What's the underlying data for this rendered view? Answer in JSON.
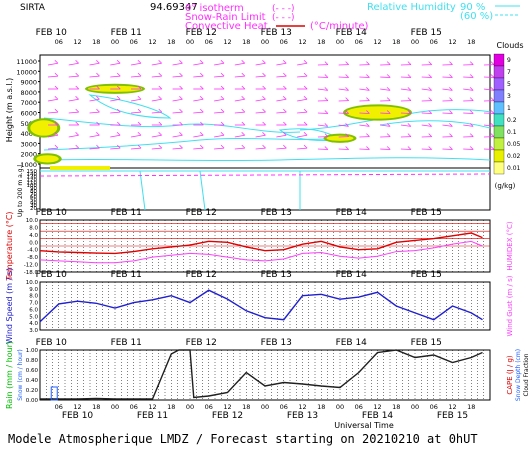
{
  "header": {
    "station": "SIRTA",
    "coord": "94.69347",
    "legend_isotherm": "0° isotherm",
    "legend_snow_rain": "Snow-Rain Limit",
    "legend_convective": "Convective Heat.",
    "legend_unit_minute": "(°C/minute)",
    "legend_relhum": "Relative Humidity",
    "relhum_90": "90 %",
    "relhum_60": "(60 %)",
    "dash_symbol": "(- - -)"
  },
  "days": [
    "FEB 10",
    "FEB 11",
    "FEB 12",
    "FEB 13",
    "FEB 14",
    "FEB 15"
  ],
  "hours": [
    "06",
    "12",
    "18",
    "00",
    "06",
    "12",
    "18",
    "00",
    "06",
    "12",
    "18",
    "00",
    "06",
    "12",
    "18",
    "00",
    "06",
    "12",
    "18",
    "00",
    "06",
    "12",
    "18"
  ],
  "colors": {
    "humidity": "#40e0f0",
    "cloud_yellow": "#f0f000",
    "cloud_green": "#80c000",
    "wind_barb": "#ff30ff",
    "temperature": "#e00000",
    "humidex": "#ff40ff",
    "wind_speed": "#2020d0",
    "cloud_fraction": "#202020",
    "rain": "#00c000",
    "snow": "#2060ff"
  },
  "chart_data": [
    {
      "type": "heatmap",
      "name": "altitude_cross_section",
      "ylabel": "Height (m a.s.l.)",
      "ylabel2": "Up to 200 m a.g.l.",
      "y_ticks_upper": [
        "11000",
        "10000",
        "9000",
        "8000",
        "7000",
        "6000",
        "5000",
        "4000",
        "3000",
        "2000",
        "1000"
      ],
      "y_ticks_lower": [
        "150",
        "140",
        "130",
        "120",
        "110",
        "100",
        "90",
        "80",
        "70",
        "60",
        "50",
        "40",
        "30",
        "20"
      ],
      "colorbar_title": "Clouds",
      "colorbar_unit": "(g/kg)",
      "colorbar_ticks": [
        "9",
        "7",
        "5",
        "3",
        "1",
        "0.2",
        "0.1",
        "0.05",
        "0.02",
        "0.01"
      ],
      "colorbar_colors": [
        "#e000e0",
        "#c040f0",
        "#a060ff",
        "#8080ff",
        "#60c0ff",
        "#40e0c0",
        "#80e060",
        "#c0f040",
        "#e8f000",
        "#ffff80"
      ],
      "cloud_patches": [
        {
          "day_pos": 0.05,
          "alt": 4500,
          "w": 0.06,
          "h": 1500
        },
        {
          "day_pos": 0.1,
          "alt": 1500,
          "w": 0.05,
          "h": 700
        },
        {
          "day_pos": 1.0,
          "alt": 8300,
          "w": 0.12,
          "h": 600
        },
        {
          "day_pos": 4.0,
          "alt": 3500,
          "w": 0.06,
          "h": 500
        },
        {
          "day_pos": 4.5,
          "alt": 6000,
          "w": 0.14,
          "h": 1200
        }
      ]
    },
    {
      "type": "line",
      "name": "temperature",
      "ylabel": "Temperature (°C)",
      "ylabel2": "HUMIDEX (°C)",
      "y_ticks": [
        "10.0",
        "8.0",
        "4.0",
        "0.0",
        "-4.0",
        "-8.0",
        "-12.0",
        "-18.0"
      ],
      "ylim": [
        -18,
        10
      ],
      "series": [
        {
          "name": "Temperature",
          "x": [
            0.0,
            0.25,
            0.5,
            0.75,
            1.0,
            1.25,
            1.5,
            1.75,
            2.0,
            2.25,
            2.5,
            2.75,
            3.0,
            3.25,
            3.5,
            3.75,
            4.0,
            4.25,
            4.5,
            4.75,
            5.0,
            5.25,
            5.5,
            5.75,
            5.9
          ],
          "values": [
            -6.5,
            -7.2,
            -7.5,
            -7.8,
            -8.0,
            -7.0,
            -5.5,
            -4.5,
            -3.5,
            -1.5,
            -2.0,
            -4.5,
            -6.5,
            -6.0,
            -3.0,
            -1.5,
            -4.5,
            -6.0,
            -5.5,
            -2.0,
            -1.0,
            0.0,
            1.5,
            3.0,
            0.5
          ]
        },
        {
          "name": "HUMIDEX",
          "x": [
            0.0,
            0.25,
            0.5,
            0.75,
            1.0,
            1.25,
            1.5,
            1.75,
            2.0,
            2.25,
            2.5,
            2.75,
            3.0,
            3.25,
            3.5,
            3.75,
            4.0,
            4.25,
            4.5,
            4.75,
            5.0,
            5.25,
            5.5,
            5.75,
            5.9
          ],
          "values": [
            -11.5,
            -12.0,
            -12.5,
            -13.0,
            -13.0,
            -12.0,
            -10.0,
            -9.0,
            -8.0,
            -8.5,
            -10.0,
            -11.5,
            -12.0,
            -11.0,
            -8.0,
            -7.5,
            -9.5,
            -10.5,
            -9.5,
            -7.0,
            -6.5,
            -5.0,
            -3.0,
            -1.5,
            -4.0
          ]
        }
      ]
    },
    {
      "type": "line",
      "name": "wind",
      "ylabel": "Wind Speed (m / s)",
      "ylabel2": "Wind Gust (m / s)",
      "y_ticks": [
        "10.0",
        "9.0",
        "8.0",
        "7.0",
        "6.0",
        "5.0",
        "4.0",
        "3.0"
      ],
      "ylim": [
        3,
        10
      ],
      "series": [
        {
          "name": "Wind Speed",
          "x": [
            0.0,
            0.25,
            0.5,
            0.75,
            1.0,
            1.25,
            1.5,
            1.75,
            2.0,
            2.25,
            2.5,
            2.75,
            3.0,
            3.25,
            3.5,
            3.75,
            4.0,
            4.25,
            4.5,
            4.75,
            5.0,
            5.25,
            5.5,
            5.75,
            5.9
          ],
          "values": [
            4.2,
            6.8,
            7.2,
            6.9,
            6.2,
            7.0,
            7.4,
            8.0,
            7.0,
            8.8,
            7.5,
            5.8,
            4.8,
            4.5,
            8.0,
            8.2,
            7.5,
            7.8,
            8.5,
            6.5,
            5.5,
            4.5,
            6.5,
            5.5,
            4.5
          ]
        }
      ]
    },
    {
      "type": "line",
      "name": "precipitation_clouds",
      "ylabel": "Rain (mm / hour)",
      "ylabel_b": "Snow (cm / hour)",
      "ylabel2": "CAPE (J / g)",
      "ylabel2_b": "Snow Depth (cm)",
      "ylabel2_c": "Cloud Fraction",
      "y_ticks": [
        "1.00",
        "0.80",
        "0.60",
        "0.40",
        "0.20",
        "0.00"
      ],
      "ylim": [
        0,
        1
      ],
      "series": [
        {
          "name": "Cloud Fraction",
          "x": [
            0.0,
            0.5,
            0.75,
            1.0,
            1.5,
            1.75,
            1.85,
            2.0,
            2.05,
            2.25,
            2.5,
            2.75,
            3.0,
            3.25,
            3.5,
            3.75,
            4.0,
            4.25,
            4.5,
            4.75,
            5.0,
            5.25,
            5.5,
            5.75,
            5.9
          ],
          "values": [
            0.02,
            0.02,
            0.03,
            0.02,
            0.02,
            0.92,
            1.0,
            1.0,
            0.05,
            0.08,
            0.15,
            0.55,
            0.28,
            0.35,
            0.32,
            0.28,
            0.25,
            0.55,
            0.95,
            1.0,
            0.85,
            0.9,
            0.75,
            0.85,
            0.95
          ]
        }
      ]
    }
  ],
  "x_axis": {
    "label": "Universal Time"
  },
  "footer": {
    "text": "Modele Atmospherique LMDZ / Forecast starting on 20210210 at 0hUT"
  }
}
